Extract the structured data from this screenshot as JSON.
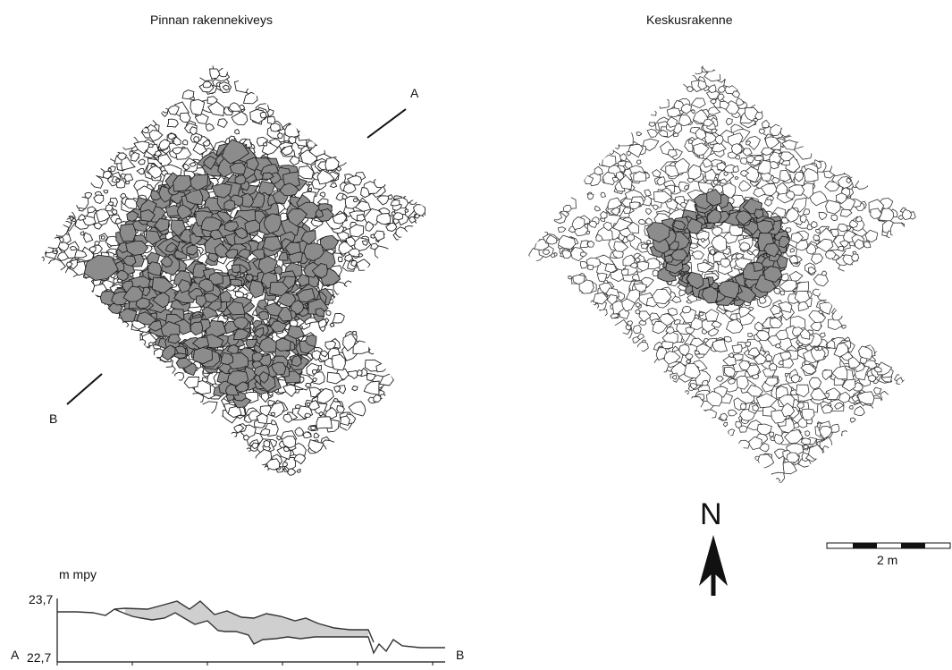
{
  "left_plan": {
    "title": "Pinnan rakennekiveys",
    "section_start": "A",
    "section_end": "B"
  },
  "right_plan": {
    "title": "Keskusrakenne"
  },
  "north_arrow": {
    "label": "N",
    "icon": "north-arrow-icon"
  },
  "scale_bar": {
    "label": "2 m",
    "segments": 4
  },
  "profile": {
    "unit_label": "m mpy",
    "y_max_label": "23,7",
    "y_min_label": "22,7",
    "start_label": "A",
    "end_label": "B"
  },
  "colors": {
    "stone_fill": "#8c8c8c",
    "stone_outline": "#222222",
    "profile_fill": "#cfcfcf"
  }
}
